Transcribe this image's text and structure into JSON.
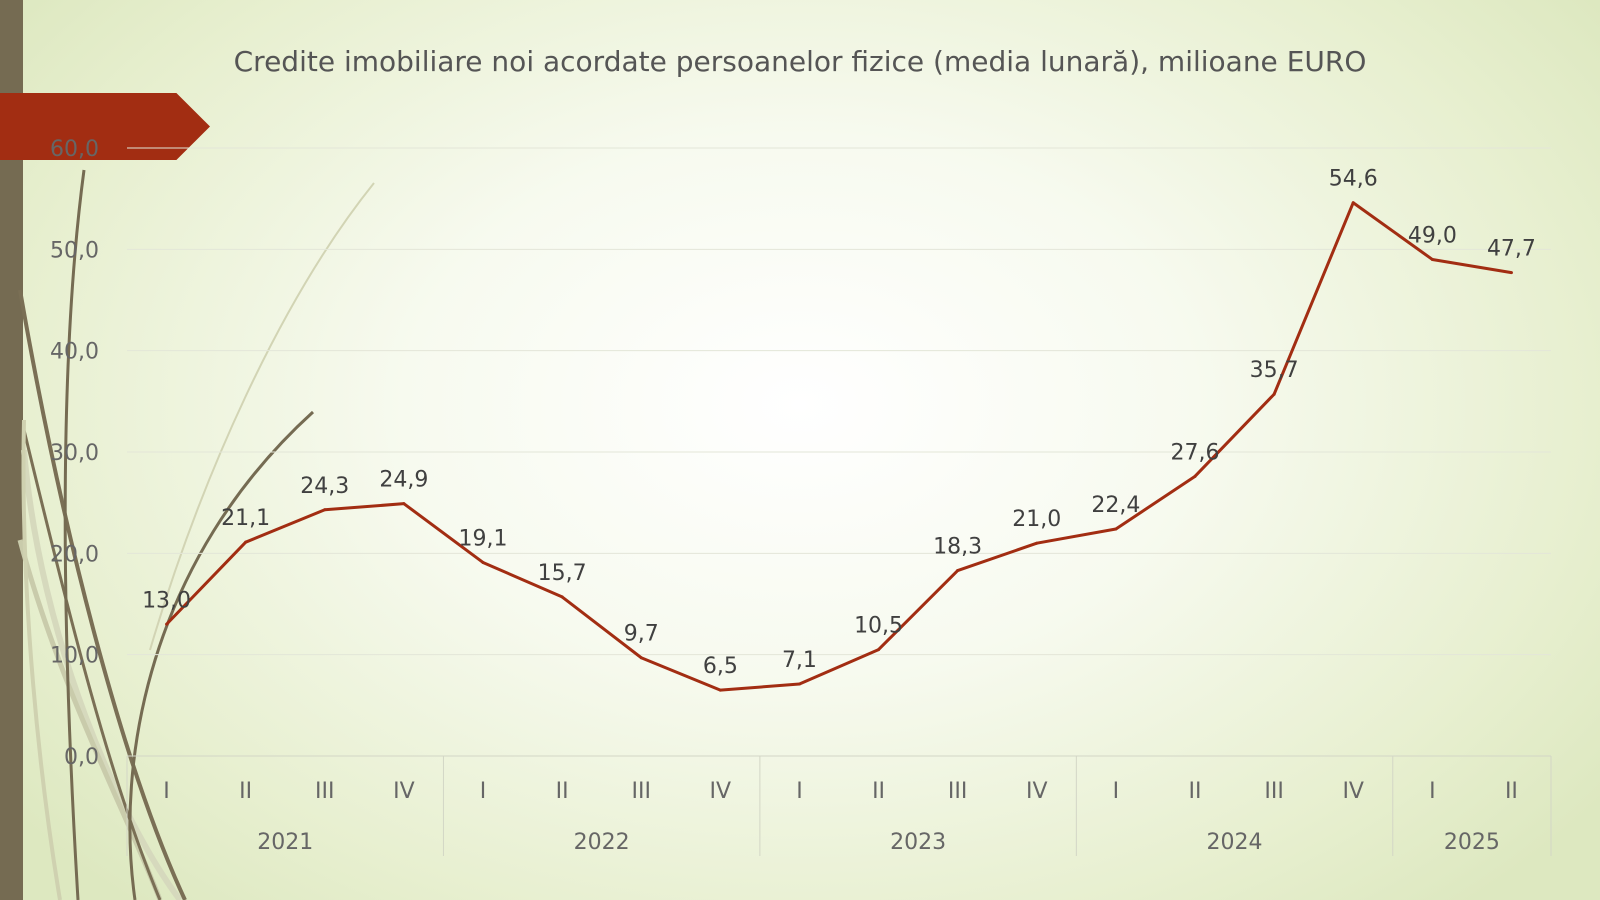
{
  "slide": {
    "accent_color": "#a22d12",
    "side_bar_color": "#756b52",
    "background_color": "#eef3dc"
  },
  "chart_data": {
    "type": "line",
    "title": "Credite imobiliare noi acordate persoanelor fizice (media lunară), milioane EURO",
    "xlabel": "",
    "ylabel": "",
    "ylim": [
      0,
      60
    ],
    "y_ticks": [
      "0,0",
      "10,0",
      "20,0",
      "30,0",
      "40,0",
      "50,0",
      "60,0"
    ],
    "grid": true,
    "legend": "none",
    "categories": [
      "I",
      "II",
      "III",
      "IV",
      "I",
      "II",
      "III",
      "IV",
      "I",
      "II",
      "III",
      "IV",
      "I",
      "II",
      "III",
      "IV",
      "I",
      "II"
    ],
    "groups": [
      {
        "label": "2021",
        "count": 4
      },
      {
        "label": "2022",
        "count": 4
      },
      {
        "label": "2023",
        "count": 4
      },
      {
        "label": "2024",
        "count": 4
      },
      {
        "label": "2025",
        "count": 2
      }
    ],
    "series": [
      {
        "color": "#a22d12",
        "values": [
          13.0,
          21.1,
          24.3,
          24.9,
          19.1,
          15.7,
          9.7,
          6.5,
          7.1,
          10.5,
          18.3,
          21.0,
          22.4,
          27.6,
          35.7,
          54.6,
          49.0,
          47.7
        ],
        "data_labels": [
          "13,0",
          "21,1",
          "24,3",
          "24,9",
          "19,1",
          "15,7",
          "9,7",
          "6,5",
          "7,1",
          "10,5",
          "18,3",
          "21,0",
          "22,4",
          "27,6",
          "35,7",
          "54,6",
          "49,0",
          "47,7"
        ]
      }
    ]
  }
}
